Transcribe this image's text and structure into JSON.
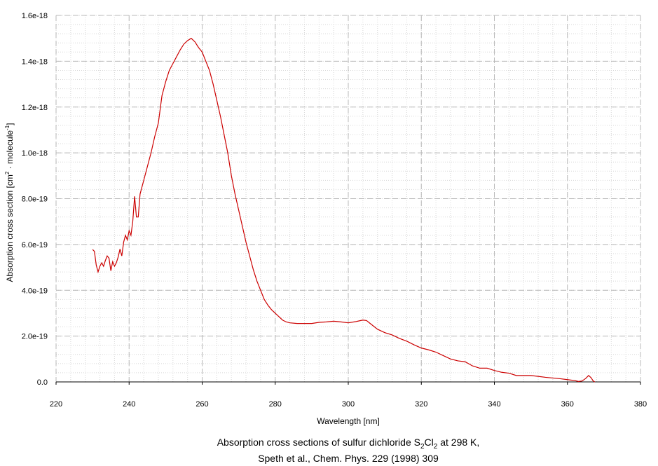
{
  "chart_data": {
    "type": "line",
    "xlabel": "Wavelength [nm]",
    "ylabel_parts": {
      "prefix": "Absorption cross section [cm",
      "exp1": "2",
      "middle": " · molecule",
      "exp2": "-1",
      "suffix": "]"
    },
    "caption_line1_parts": {
      "prefix": "Absorption cross sections of sulfur dichloride S",
      "sub1": "2",
      "mid": "Cl",
      "sub2": "2",
      "suffix": " at 298 K,"
    },
    "caption_line2": "Speth et al., Chem. Phys. 229 (1998) 309",
    "xlim": [
      220,
      380
    ],
    "ylim": [
      0,
      1.6e-18
    ],
    "x_ticks": [
      220,
      240,
      260,
      280,
      300,
      320,
      340,
      360,
      380
    ],
    "y_ticks": [
      0,
      2e-19,
      4e-19,
      6e-19,
      8e-19,
      1e-18,
      1.2e-18,
      1.4e-18,
      1.6e-18
    ],
    "y_tick_labels": [
      "0.0",
      "2.0e-19",
      "4.0e-19",
      "6.0e-19",
      "8.0e-19",
      "1.0e-18",
      "1.2e-18",
      "1.4e-18",
      "1.6e-18"
    ],
    "grid": true,
    "series_color": "#cc0000",
    "series": [
      {
        "points": [
          [
            230.0,
            5.78e-19
          ],
          [
            230.5,
            5.7e-19
          ],
          [
            231.0,
            5.1e-19
          ],
          [
            231.5,
            4.8e-19
          ],
          [
            232.0,
            5.05e-19
          ],
          [
            232.5,
            5.2e-19
          ],
          [
            233.0,
            5.05e-19
          ],
          [
            233.5,
            5.3e-19
          ],
          [
            234.0,
            5.5e-19
          ],
          [
            234.5,
            5.4e-19
          ],
          [
            235.0,
            4.85e-19
          ],
          [
            235.5,
            5.25e-19
          ],
          [
            236.0,
            5.05e-19
          ],
          [
            236.5,
            5.2e-19
          ],
          [
            237.0,
            5.45e-19
          ],
          [
            237.5,
            5.8e-19
          ],
          [
            238.0,
            5.5e-19
          ],
          [
            238.5,
            6.1e-19
          ],
          [
            239.0,
            6.4e-19
          ],
          [
            239.5,
            6.2e-19
          ],
          [
            240.0,
            6.6e-19
          ],
          [
            240.5,
            6.4e-19
          ],
          [
            241.0,
            7e-19
          ],
          [
            241.5,
            8.1e-19
          ],
          [
            242.0,
            7.2e-19
          ],
          [
            242.5,
            7.2e-19
          ],
          [
            243.0,
            8.2e-19
          ],
          [
            244.0,
            8.8e-19
          ],
          [
            245.0,
            9.4e-19
          ],
          [
            246.0,
            1e-18
          ],
          [
            247.0,
            1.07e-18
          ],
          [
            248.0,
            1.13e-18
          ],
          [
            249.0,
            1.25e-18
          ],
          [
            250.0,
            1.31e-18
          ],
          [
            251.0,
            1.36e-18
          ],
          [
            252.0,
            1.39e-18
          ],
          [
            253.0,
            1.42e-18
          ],
          [
            254.0,
            1.45e-18
          ],
          [
            255.0,
            1.475e-18
          ],
          [
            256.0,
            1.49e-18
          ],
          [
            257.0,
            1.5e-18
          ],
          [
            258.0,
            1.485e-18
          ],
          [
            259.0,
            1.46e-18
          ],
          [
            260.0,
            1.44e-18
          ],
          [
            261.0,
            1.4e-18
          ],
          [
            262.0,
            1.36e-18
          ],
          [
            263.0,
            1.3e-18
          ],
          [
            264.0,
            1.23e-18
          ],
          [
            265.0,
            1.16e-18
          ],
          [
            266.0,
            1.08e-18
          ],
          [
            267.0,
            1e-18
          ],
          [
            268.0,
            9e-19
          ],
          [
            269.0,
            8.2e-19
          ],
          [
            270.0,
            7.5e-19
          ],
          [
            271.0,
            6.8e-19
          ],
          [
            272.0,
            6.1e-19
          ],
          [
            273.0,
            5.5e-19
          ],
          [
            274.0,
            4.9e-19
          ],
          [
            275.0,
            4.4e-19
          ],
          [
            276.0,
            4e-19
          ],
          [
            277.0,
            3.6e-19
          ],
          [
            278.0,
            3.35e-19
          ],
          [
            279.0,
            3.15e-19
          ],
          [
            280.0,
            3e-19
          ],
          [
            281.0,
            2.85e-19
          ],
          [
            282.0,
            2.7e-19
          ],
          [
            283.0,
            2.62e-19
          ],
          [
            284.0,
            2.58e-19
          ],
          [
            286.0,
            2.55e-19
          ],
          [
            288.0,
            2.55e-19
          ],
          [
            290.0,
            2.55e-19
          ],
          [
            292.0,
            2.6e-19
          ],
          [
            294.0,
            2.62e-19
          ],
          [
            296.0,
            2.65e-19
          ],
          [
            298.0,
            2.62e-19
          ],
          [
            300.0,
            2.58e-19
          ],
          [
            302.0,
            2.63e-19
          ],
          [
            304.0,
            2.7e-19
          ],
          [
            305.0,
            2.68e-19
          ],
          [
            306.0,
            2.55e-19
          ],
          [
            308.0,
            2.3e-19
          ],
          [
            310.0,
            2.15e-19
          ],
          [
            312.0,
            2.05e-19
          ],
          [
            314.0,
            1.9e-19
          ],
          [
            316.0,
            1.78e-19
          ],
          [
            318.0,
            1.62e-19
          ],
          [
            320.0,
            1.48e-19
          ],
          [
            322.0,
            1.4e-19
          ],
          [
            324.0,
            1.3e-19
          ],
          [
            326.0,
            1.15e-19
          ],
          [
            328.0,
            1e-19
          ],
          [
            330.0,
            9.2e-20
          ],
          [
            332.0,
            8.8e-20
          ],
          [
            334.0,
            7e-20
          ],
          [
            336.0,
            6e-20
          ],
          [
            338.0,
            6e-20
          ],
          [
            340.0,
            5e-20
          ],
          [
            342.0,
            4.2e-20
          ],
          [
            344.0,
            3.8e-20
          ],
          [
            346.0,
            2.8e-20
          ],
          [
            348.0,
            2.8e-20
          ],
          [
            350.0,
            2.8e-20
          ],
          [
            352.0,
            2.4e-20
          ],
          [
            354.0,
            2e-20
          ],
          [
            356.0,
            1.7e-20
          ],
          [
            358.0,
            1.4e-20
          ],
          [
            360.0,
            1e-20
          ],
          [
            362.0,
            6e-21
          ],
          [
            363.0,
            2e-21
          ],
          [
            364.0,
            4e-21
          ],
          [
            365.0,
            1.5e-20
          ],
          [
            365.8,
            2.8e-20
          ],
          [
            366.5,
            1.8e-20
          ],
          [
            367.0,
            5e-21
          ],
          [
            367.5,
            0.0
          ]
        ]
      }
    ]
  }
}
